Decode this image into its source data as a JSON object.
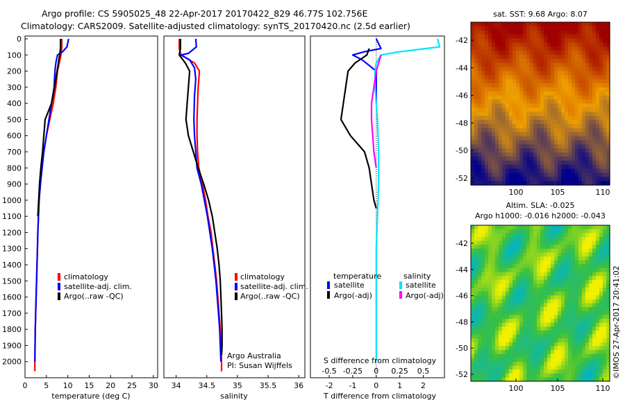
{
  "header": {
    "line1": "Argo profile: CS 5905025_48 22-Apr-2017 20170422_829 46.77S 102.756E",
    "line2": "Climatology: CARS2009. Satellite-adjusted climatology: synTS_20170420.nc (2.5d earlier)"
  },
  "footer_credit": "©IMOS 27-Apr-2017 20:41:02",
  "colors": {
    "climatology": "#ff0000",
    "satellite_adj": "#0000ff",
    "argo": "#000000",
    "salinity_satellite": "#00e5ff",
    "salinity_argo": "#ff00ff"
  },
  "chart_data": [
    {
      "id": "temperature",
      "type": "line",
      "xlabel": "temperature (deg C)",
      "ylabel": "",
      "xlim": [
        0,
        31
      ],
      "ylim": [
        2100,
        0
      ],
      "xticks": [
        "0",
        "5",
        "10",
        "15",
        "20",
        "25",
        "30"
      ],
      "yticks": [
        "0",
        "100",
        "200",
        "300",
        "400",
        "500",
        "600",
        "700",
        "800",
        "900",
        "1000",
        "1100",
        "1200",
        "1300",
        "1400",
        "1500",
        "1600",
        "1700",
        "1800",
        "1900",
        "2000"
      ],
      "legend": [
        "climatology",
        "satellite-adj. clim.",
        "Argo(..raw -QC)"
      ],
      "series": [
        {
          "name": "climatology",
          "color": "#ff0000",
          "points": [
            [
              8.6,
              0
            ],
            [
              8.6,
              50
            ],
            [
              8.4,
              100
            ],
            [
              8.0,
              150
            ],
            [
              7.6,
              200
            ],
            [
              7.2,
              300
            ],
            [
              6.6,
              400
            ],
            [
              5.8,
              500
            ],
            [
              5.0,
              600
            ],
            [
              4.4,
              700
            ],
            [
              4.0,
              800
            ],
            [
              3.6,
              900
            ],
            [
              3.3,
              1000
            ],
            [
              3.0,
              1200
            ],
            [
              2.8,
              1400
            ],
            [
              2.6,
              1600
            ],
            [
              2.4,
              1800
            ],
            [
              2.3,
              2000
            ],
            [
              2.3,
              2060
            ]
          ]
        },
        {
          "name": "satellite-adj. clim.",
          "color": "#0000ff",
          "points": [
            [
              10.2,
              0
            ],
            [
              9.8,
              50
            ],
            [
              8.8,
              80
            ],
            [
              7.6,
              100
            ],
            [
              7.2,
              150
            ],
            [
              7.0,
              200
            ],
            [
              6.8,
              300
            ],
            [
              6.2,
              400
            ],
            [
              5.6,
              500
            ],
            [
              5.0,
              600
            ],
            [
              4.4,
              700
            ],
            [
              4.0,
              800
            ],
            [
              3.6,
              900
            ],
            [
              3.3,
              1000
            ],
            [
              3.0,
              1200
            ],
            [
              2.8,
              1400
            ],
            [
              2.6,
              1600
            ],
            [
              2.4,
              1800
            ],
            [
              2.3,
              2000
            ]
          ]
        },
        {
          "name": "Argo(..raw -QC)",
          "color": "#000000",
          "points": [
            [
              8.3,
              0
            ],
            [
              8.3,
              60
            ],
            [
              8.1,
              100
            ],
            [
              7.8,
              150
            ],
            [
              7.5,
              200
            ],
            [
              6.9,
              300
            ],
            [
              6.2,
              400
            ],
            [
              4.7,
              500
            ],
            [
              4.4,
              600
            ],
            [
              4.1,
              700
            ],
            [
              3.7,
              800
            ],
            [
              3.4,
              900
            ],
            [
              3.2,
              1000
            ],
            [
              3.0,
              1100
            ]
          ]
        }
      ]
    },
    {
      "id": "salinity",
      "type": "line",
      "xlabel": "salinity",
      "ylabel": "",
      "xlim": [
        33.8,
        36.1
      ],
      "ylim": [
        2100,
        0
      ],
      "xticks": [
        "34",
        "34.5",
        "35",
        "35.5",
        "36"
      ],
      "legend": [
        "climatology",
        "satellite-adj. clim.",
        "Argo(..raw -QC)"
      ],
      "annotation": [
        "Argo Australia",
        "PI: Susan Wijffels"
      ],
      "series": [
        {
          "name": "climatology",
          "color": "#ff0000",
          "points": [
            [
              34.05,
              0
            ],
            [
              34.05,
              60
            ],
            [
              34.08,
              100
            ],
            [
              34.3,
              150
            ],
            [
              34.38,
              200
            ],
            [
              34.36,
              300
            ],
            [
              34.35,
              400
            ],
            [
              34.34,
              500
            ],
            [
              34.34,
              600
            ],
            [
              34.35,
              700
            ],
            [
              34.37,
              800
            ],
            [
              34.43,
              900
            ],
            [
              34.48,
              1000
            ],
            [
              34.52,
              1100
            ],
            [
              34.57,
              1200
            ],
            [
              34.6,
              1300
            ],
            [
              34.63,
              1400
            ],
            [
              34.66,
              1500
            ],
            [
              34.68,
              1600
            ],
            [
              34.7,
              1700
            ],
            [
              34.72,
              1800
            ],
            [
              34.73,
              1900
            ],
            [
              34.74,
              2000
            ],
            [
              34.74,
              2060
            ]
          ]
        },
        {
          "name": "satellite-adj. clim.",
          "color": "#0000ff",
          "points": [
            [
              34.32,
              0
            ],
            [
              34.33,
              50
            ],
            [
              34.2,
              90
            ],
            [
              34.08,
              100
            ],
            [
              34.22,
              130
            ],
            [
              34.3,
              180
            ],
            [
              34.32,
              250
            ],
            [
              34.3,
              350
            ],
            [
              34.29,
              500
            ],
            [
              34.3,
              600
            ],
            [
              34.32,
              700
            ],
            [
              34.34,
              800
            ],
            [
              34.41,
              900
            ],
            [
              34.46,
              1000
            ],
            [
              34.51,
              1100
            ],
            [
              34.55,
              1200
            ],
            [
              34.59,
              1300
            ],
            [
              34.62,
              1400
            ],
            [
              34.65,
              1500
            ],
            [
              34.67,
              1600
            ],
            [
              34.69,
              1700
            ],
            [
              34.71,
              1800
            ],
            [
              34.72,
              1900
            ],
            [
              34.73,
              2000
            ]
          ]
        },
        {
          "name": "Argo(..raw -QC)",
          "color": "#000000",
          "points": [
            [
              34.07,
              0
            ],
            [
              34.07,
              60
            ],
            [
              34.05,
              100
            ],
            [
              34.15,
              150
            ],
            [
              34.22,
              200
            ],
            [
              34.2,
              300
            ],
            [
              34.18,
              400
            ],
            [
              34.16,
              500
            ],
            [
              34.2,
              600
            ],
            [
              34.28,
              700
            ],
            [
              34.36,
              800
            ],
            [
              34.45,
              900
            ],
            [
              34.53,
              1000
            ],
            [
              34.59,
              1100
            ],
            [
              34.63,
              1200
            ],
            [
              34.67,
              1300
            ],
            [
              34.7,
              1400
            ],
            [
              34.72,
              1500
            ],
            [
              34.73,
              1600
            ],
            [
              34.74,
              1700
            ],
            [
              34.75,
              1800
            ],
            [
              34.75,
              1900
            ],
            [
              34.74,
              1960
            ]
          ]
        }
      ]
    },
    {
      "id": "difference",
      "type": "line",
      "xlabel": "T difference from climatology",
      "ylabel": "",
      "xlim": [
        -2.8,
        2.9
      ],
      "ylim": [
        2100,
        0
      ],
      "xticks": [
        "-2",
        "-1",
        "0",
        "1",
        "2"
      ],
      "secondary_xlabel": "S difference from climatology",
      "secondary_xticks": [
        "-0.5",
        "-0.25",
        "0",
        "0.25",
        "0.5"
      ],
      "legend": {
        "temperature_heading": "temperature",
        "salinity_heading": "salinity",
        "entries": [
          "satellite",
          "Argo(-adj)",
          "satellite",
          "Argo(-adj)"
        ]
      },
      "series": [
        {
          "name": "temperature satellite",
          "color": "#0000ff",
          "points": [
            [
              0,
              0
            ],
            [
              0.2,
              60
            ],
            [
              -0.5,
              80
            ],
            [
              -1.0,
              100
            ],
            [
              -0.6,
              130
            ],
            [
              0,
              200
            ],
            [
              0,
              400
            ]
          ]
        },
        {
          "name": "temperature Argo(-adj)",
          "color": "#000000",
          "points": [
            [
              -0.3,
              60
            ],
            [
              -0.4,
              100
            ],
            [
              -0.9,
              150
            ],
            [
              -1.2,
              200
            ],
            [
              -1.3,
              300
            ],
            [
              -1.4,
              400
            ],
            [
              -1.5,
              500
            ],
            [
              -1.1,
              600
            ],
            [
              -0.5,
              700
            ],
            [
              -0.3,
              800
            ],
            [
              -0.2,
              900
            ],
            [
              -0.1,
              1000
            ],
            [
              0,
              1050
            ]
          ]
        },
        {
          "name": "salinity satellite",
          "color": "#00e5ff",
          "points": [
            [
              2.6,
              0
            ],
            [
              2.7,
              50
            ],
            [
              1.0,
              80
            ],
            [
              0.2,
              100
            ],
            [
              0.0,
              150
            ],
            [
              -0.05,
              200
            ],
            [
              -0.05,
              300
            ],
            [
              0.05,
              500
            ],
            [
              0.1,
              700
            ],
            [
              0.1,
              900
            ],
            [
              0.05,
              1100
            ],
            [
              0.0,
              1300
            ],
            [
              0.0,
              1600
            ],
            [
              0.0,
              2000
            ]
          ]
        },
        {
          "name": "salinity Argo(-adj)",
          "color": "#ff00ff",
          "points": [
            [
              0.2,
              100
            ],
            [
              0.0,
              200
            ],
            [
              -0.1,
              300
            ],
            [
              -0.2,
              400
            ],
            [
              -0.2,
              500
            ],
            [
              -0.1,
              700
            ],
            [
              0,
              800
            ]
          ]
        }
      ]
    },
    {
      "id": "sst_map",
      "type": "heatmap",
      "title": "sat. SST: 9.68 Argo: 8.07",
      "xticks": [
        "100",
        "105",
        "110"
      ],
      "yticks": [
        "-42",
        "-44",
        "-46",
        "-48",
        "-50",
        "-52"
      ],
      "colors": {
        "high": "#a00000",
        "mid": "#f0a000",
        "low": "#00008c"
      }
    },
    {
      "id": "sla_map",
      "type": "heatmap",
      "title_line1": "Altim. SLA: -0.025",
      "title_line2": "Argo h1000: -0.016 h2000: -0.043",
      "xticks": [
        "100",
        "105",
        "110"
      ],
      "yticks": [
        "-42",
        "-44",
        "-46",
        "-48",
        "-50",
        "-52"
      ],
      "colors": {
        "mid": "#3cc03c",
        "high": "#f0f000",
        "low": "#00b4c8"
      }
    }
  ]
}
